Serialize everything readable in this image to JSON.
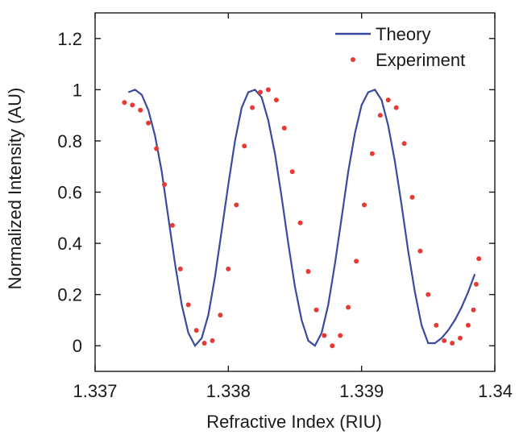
{
  "chart_data": {
    "type": "line",
    "title": "",
    "xlabel": "Refractive Index (RIU)",
    "ylabel": "Normalized Intensity (AU)",
    "xlim": [
      1.337,
      1.34
    ],
    "ylim": [
      -0.1,
      1.3
    ],
    "x_ticks": [
      1.337,
      1.338,
      1.339,
      1.34
    ],
    "x_tick_labels": [
      "1.337",
      "1.338",
      "1.339",
      "1.34"
    ],
    "y_ticks": [
      0,
      0.2,
      0.4,
      0.6,
      0.8,
      1,
      1.2
    ],
    "y_tick_labels": [
      "0",
      "0.2",
      "0.4",
      "0.6",
      "0.8",
      "1",
      "1.2"
    ],
    "grid": false,
    "legend_position": "top-right",
    "series": [
      {
        "name": "Theory",
        "style": "line",
        "color": "#3a4aa0",
        "x": [
          1.33725,
          1.3373,
          1.33735,
          1.3374,
          1.33745,
          1.3375,
          1.33755,
          1.3376,
          1.33765,
          1.3377,
          1.33775,
          1.3378,
          1.33785,
          1.3379,
          1.33795,
          1.338,
          1.33805,
          1.3381,
          1.33815,
          1.3382,
          1.33825,
          1.3383,
          1.33835,
          1.3384,
          1.33845,
          1.3385,
          1.33855,
          1.3386,
          1.33865,
          1.3387,
          1.33875,
          1.3388,
          1.33885,
          1.3389,
          1.33895,
          1.339,
          1.33905,
          1.3391,
          1.33915,
          1.3392,
          1.33925,
          1.3393,
          1.33935,
          1.3394,
          1.33945,
          1.3395,
          1.33955,
          1.3396,
          1.33965,
          1.3397,
          1.33975,
          1.3398,
          1.33985
        ],
        "y": [
          0.99,
          1.0,
          0.98,
          0.92,
          0.82,
          0.68,
          0.5,
          0.32,
          0.16,
          0.05,
          0.0,
          0.03,
          0.12,
          0.27,
          0.45,
          0.63,
          0.8,
          0.93,
          0.99,
          1.0,
          0.97,
          0.88,
          0.75,
          0.58,
          0.4,
          0.23,
          0.1,
          0.02,
          0.0,
          0.05,
          0.16,
          0.32,
          0.5,
          0.68,
          0.83,
          0.94,
          0.99,
          1.0,
          0.96,
          0.86,
          0.72,
          0.55,
          0.37,
          0.21,
          0.08,
          0.01,
          0.01,
          0.03,
          0.06,
          0.1,
          0.15,
          0.21,
          0.28
        ]
      },
      {
        "name": "Experiment",
        "style": "scatter",
        "color": "#e83a35",
        "x": [
          1.33722,
          1.33728,
          1.33734,
          1.3374,
          1.33746,
          1.33752,
          1.33758,
          1.33764,
          1.3377,
          1.33776,
          1.33782,
          1.33788,
          1.33794,
          1.338,
          1.33806,
          1.33812,
          1.33818,
          1.33824,
          1.3383,
          1.33836,
          1.33842,
          1.33848,
          1.33854,
          1.3386,
          1.33866,
          1.33872,
          1.33878,
          1.33884,
          1.3389,
          1.33896,
          1.33902,
          1.33908,
          1.33914,
          1.3392,
          1.33926,
          1.33932,
          1.33938,
          1.33944,
          1.3395,
          1.33956,
          1.33962,
          1.33968,
          1.33974,
          1.3398,
          1.33984,
          1.33986,
          1.33988
        ],
        "y": [
          0.95,
          0.94,
          0.92,
          0.87,
          0.77,
          0.63,
          0.47,
          0.3,
          0.16,
          0.06,
          0.01,
          0.02,
          0.12,
          0.3,
          0.55,
          0.78,
          0.93,
          0.99,
          1.0,
          0.96,
          0.85,
          0.68,
          0.48,
          0.29,
          0.14,
          0.04,
          0.0,
          0.04,
          0.15,
          0.33,
          0.55,
          0.75,
          0.9,
          0.96,
          0.93,
          0.79,
          0.58,
          0.37,
          0.2,
          0.08,
          0.02,
          0.01,
          0.03,
          0.08,
          0.14,
          0.24,
          0.34
        ]
      }
    ]
  }
}
